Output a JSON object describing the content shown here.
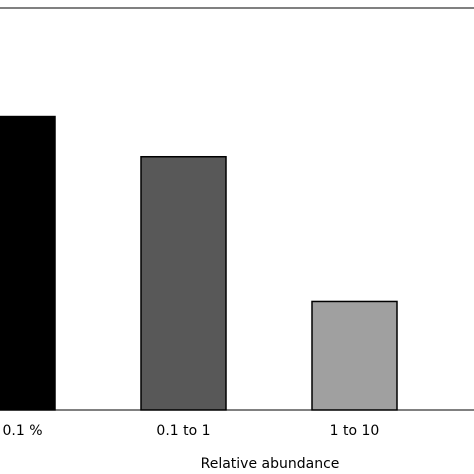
{
  "chart_data": {
    "type": "bar",
    "x_label": "Relative abundance",
    "categories": [
      "0.1 %",
      "0.1 to 1",
      "1 to 10"
    ],
    "values": [
      73,
      63,
      27
    ],
    "colors": [
      "#000000",
      "#585858",
      "#a0a0a0"
    ],
    "ylim": [
      0,
      100
    ]
  }
}
